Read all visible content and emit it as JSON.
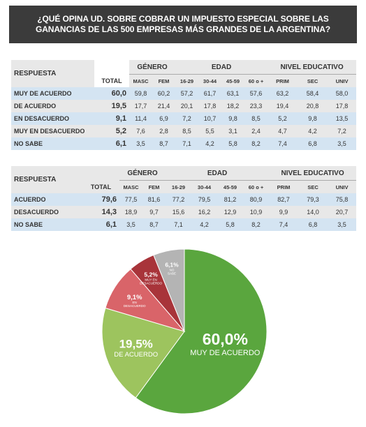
{
  "header": {
    "title_line1": "¿QUÉ OPINA UD. SOBRE COBRAR UN IMPUESTO ESPECIAL SOBRE LAS",
    "title_line2": "GANANCIAS DE LAS 500 EMPRESAS MÁS GRANDES DE LA ARGENTINA?"
  },
  "table1": {
    "col_respuesta": "RESPUESTA",
    "col_total": "TOTAL",
    "group_genero": "GÉNERO",
    "group_edad": "EDAD",
    "group_nivel": "NIVEL EDUCATIVO",
    "subcols": [
      "MASC",
      "FEM",
      "16-29",
      "30-44",
      "45-59",
      "60 o +",
      "PRIM",
      "SEC",
      "UNIV"
    ],
    "rows": [
      {
        "label": "MUY DE ACUERDO",
        "total": "60,0",
        "values": [
          "59,8",
          "60,2",
          "57,2",
          "61,7",
          "63,1",
          "57,6",
          "63,2",
          "58,4",
          "58,0"
        ]
      },
      {
        "label": "DE ACUERDO",
        "total": "19,5",
        "values": [
          "17,7",
          "21,4",
          "20,1",
          "17,8",
          "18,2",
          "23,3",
          "19,4",
          "20,8",
          "17,8"
        ]
      },
      {
        "label": "EN DESACUERDO",
        "total": "9,1",
        "values": [
          "11,4",
          "6,9",
          "7,2",
          "10,7",
          "9,8",
          "8,5",
          "5,2",
          "9,8",
          "13,5"
        ]
      },
      {
        "label": "MUY EN DESACUERDO",
        "total": "5,2",
        "values": [
          "7,6",
          "2,8",
          "8,5",
          "5,5",
          "3,1",
          "2,4",
          "4,7",
          "4,2",
          "7,2"
        ]
      },
      {
        "label": "NO SABE",
        "total": "6,1",
        "values": [
          "3,5",
          "8,7",
          "7,1",
          "4,2",
          "5,8",
          "8,2",
          "7,4",
          "6,8",
          "3,5"
        ]
      }
    ]
  },
  "table2": {
    "col_respuesta": "RESPUESTA",
    "col_total": "TOTAL",
    "group_genero": "GÉNERO",
    "group_edad": "EDAD",
    "group_nivel": "NIVEL EDUCATIVO",
    "subcols": [
      "MASC",
      "FEM",
      "16-29",
      "30-44",
      "45-59",
      "60 o +",
      "PRIM",
      "SEC",
      "UNIV"
    ],
    "rows": [
      {
        "label": "ACUERDO",
        "total": "79,6",
        "values": [
          "77,5",
          "81,6",
          "77,2",
          "79,5",
          "81,2",
          "80,9",
          "82,7",
          "79,3",
          "75,8"
        ]
      },
      {
        "label": "DESACUERDO",
        "total": "14,3",
        "values": [
          "18,9",
          "9,7",
          "15,6",
          "16,2",
          "12,9",
          "10,9",
          "9,9",
          "14,0",
          "20,7"
        ]
      },
      {
        "label": "NO SABE",
        "total": "6,1",
        "values": [
          "3,5",
          "8,7",
          "7,1",
          "4,2",
          "5,8",
          "8,2",
          "7,4",
          "6,8",
          "3,5"
        ]
      }
    ]
  },
  "chart_data": {
    "type": "pie",
    "title": "",
    "slices": [
      {
        "label": "MUY DE ACUERDO",
        "value": 60.0,
        "display": "60,0%",
        "color": "#5aa63e"
      },
      {
        "label": "DE ACUERDO",
        "value": 19.5,
        "display": "19,5%",
        "color": "#9dc45e"
      },
      {
        "label": "EN DESACUERDO",
        "value": 9.1,
        "display": "9,1%",
        "color": "#d96469"
      },
      {
        "label": "MUY EN DESACUERDO",
        "value": 5.2,
        "display": "5,2%",
        "color": "#a8343a"
      },
      {
        "label": "NO SABE",
        "value": 6.1,
        "display": "6,1%",
        "color": "#b4b4b4"
      }
    ]
  }
}
